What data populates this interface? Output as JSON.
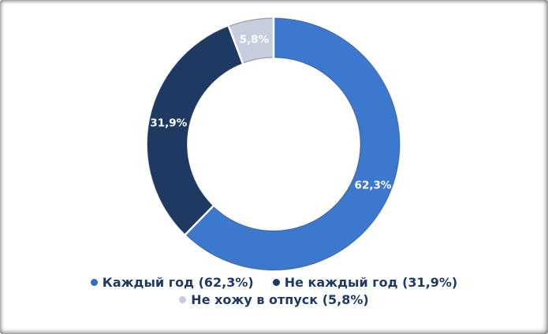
{
  "chart_data": {
    "type": "pie",
    "variant": "donut",
    "start_angle_deg": 0,
    "direction": "clockwise",
    "total": 100,
    "slices": [
      {
        "name": "Каждый год",
        "value": 62.3,
        "display": "62,3%",
        "color": "#3b78ce",
        "label_color": "#ffffff"
      },
      {
        "name": "Не каждый год",
        "value": 31.9,
        "display": "31,9%",
        "color": "#1e3a63",
        "label_color": "#ffffff"
      },
      {
        "name": "Не хожу в отпуск",
        "value": 5.8,
        "display": "5,8%",
        "color": "#c6cedd",
        "label_color": "#ffffff"
      }
    ],
    "legend": [
      {
        "label": "Каждый год (62,3%)",
        "color": "#2e6fc5"
      },
      {
        "label": "Не каждый год (31,9%)",
        "color": "#1e3a63"
      },
      {
        "label": "Не хожу в отпуск (5,8%)",
        "color": "#c6cedd"
      }
    ],
    "legend_position": "bottom",
    "grid": false,
    "title": "",
    "colors": {
      "background": "#ffffff",
      "legend_text": "#1e3a63",
      "separator": "#ffffff",
      "rim": "rgba(20,35,60,0.35)"
    }
  }
}
